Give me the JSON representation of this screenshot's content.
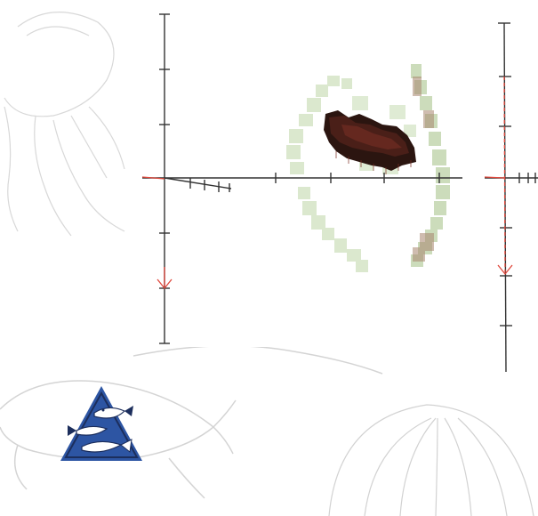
{
  "viewer": {
    "background": "#ffffff",
    "watermark_color": "#d6d6d6",
    "axis_color": "#333333",
    "arrow_color": "#e0483c"
  },
  "main_plot": {
    "surface_colors": [
      "#2b1510",
      "#4a1f18",
      "#6b2a22"
    ],
    "halo_colors": [
      "#d5e5c6",
      "#c7d9b4",
      "#a8866f"
    ]
  },
  "logo": {
    "shape": "triangle-with-fish",
    "colors": {
      "triangle": "#2d55a3",
      "fish": "#ffffff",
      "fish_outline": "#1c2e5c"
    }
  },
  "icons": [
    "fish-watermark-icon",
    "shell-watermark-icon",
    "jellyfish-watermark-icon",
    "logo-icon"
  ]
}
